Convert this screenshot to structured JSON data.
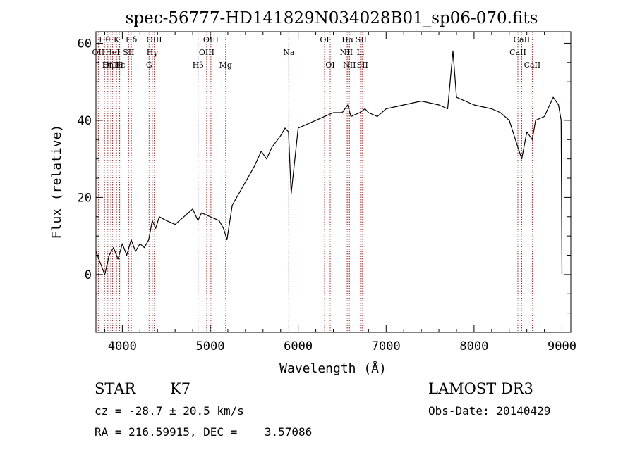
{
  "info": {
    "object_class": "STAR",
    "subclass": "K7",
    "survey": "LAMOST DR3",
    "redshift_line": "cz = -28.7 ± 20.5 km/s",
    "obs_date_line": "Obs-Date: 20140429",
    "coords_line": "RA = 216.59915, DEC =    3.57086"
  },
  "chart_data": {
    "type": "line",
    "title": "spec-56777-HD141829N034028B01_sp06-070.fits",
    "xlabel": "Wavelength (Å)",
    "ylabel": "Flux (relative)",
    "xlim": [
      3700,
      9100
    ],
    "ylim": [
      -15,
      63
    ],
    "x_ticks": [
      4000,
      5000,
      6000,
      7000,
      8000,
      9000
    ],
    "y_ticks": [
      0,
      20,
      40,
      60
    ],
    "grid": false,
    "line_color": "#000000",
    "marker_color": "#b22222",
    "series": [
      {
        "x": [
          3700,
          3750,
          3800,
          3850,
          3900,
          3950,
          4000,
          4050,
          4100,
          4150,
          4200,
          4250,
          4300,
          4340,
          4380,
          4420,
          4500,
          4600,
          4700,
          4800,
          4860,
          4900,
          5000,
          5100,
          5150,
          5190,
          5250,
          5300,
          5400,
          5500,
          5580,
          5640,
          5700,
          5800,
          5850,
          5890,
          5920,
          6000,
          6100,
          6200,
          6300,
          6400,
          6500,
          6563,
          6600,
          6700,
          6760,
          6800,
          6900,
          7000,
          7200,
          7400,
          7600,
          7700,
          7760,
          7800,
          8000,
          8200,
          8300,
          8400,
          8498,
          8542,
          8600,
          8662,
          8700,
          8800,
          8900,
          8960,
          8990,
          9000
        ],
        "y": [
          6,
          3,
          0,
          5,
          7,
          4,
          8,
          5,
          9,
          6,
          8,
          7,
          9,
          14,
          12,
          15,
          14,
          13,
          15,
          17,
          14,
          16,
          15,
          14,
          12,
          9,
          18,
          20,
          24,
          28,
          32,
          30,
          33,
          36,
          38,
          37,
          21,
          38,
          39,
          40,
          41,
          42,
          42,
          44,
          41,
          42,
          43,
          42,
          41,
          43,
          44,
          45,
          44,
          43,
          58,
          46,
          44,
          43,
          42,
          40,
          33,
          30,
          37,
          35,
          40,
          41,
          46,
          44,
          40,
          0
        ]
      }
    ],
    "line_markers": [
      {
        "label": "Hθ",
        "x": 3798,
        "row": 0
      },
      {
        "label": "OII",
        "x": 3727,
        "row": 1
      },
      {
        "label": "OIII",
        "x": 3869,
        "row": 2
      },
      {
        "label": "Hε",
        "x": 3970,
        "row": 2
      },
      {
        "label": "HeI",
        "x": 3889,
        "row": 1
      },
      {
        "label": "K",
        "x": 3934,
        "row": 0
      },
      {
        "label": "SII",
        "x": 4072,
        "row": 1
      },
      {
        "label": "Hη",
        "x": 3835,
        "row": 2
      },
      {
        "label": "H",
        "x": 3968,
        "row": 2
      },
      {
        "label": "Hδ",
        "x": 4102,
        "row": 0
      },
      {
        "label": "OIII",
        "x": 4363,
        "row": 0
      },
      {
        "label": "Hγ",
        "x": 4341,
        "row": 1
      },
      {
        "label": "G",
        "x": 4304,
        "row": 2
      },
      {
        "label": "OIII",
        "x": 5007,
        "row": 0
      },
      {
        "label": "OIII",
        "x": 4959,
        "row": 1
      },
      {
        "label": "Hβ",
        "x": 4861,
        "row": 2
      },
      {
        "label": "Mg",
        "x": 5175,
        "row": 2
      },
      {
        "label": "Na",
        "x": 5893,
        "row": 1
      },
      {
        "label": "OI",
        "x": 6300,
        "row": 0
      },
      {
        "label": "OI",
        "x": 6364,
        "row": 2
      },
      {
        "label": "Hα",
        "x": 6563,
        "row": 0
      },
      {
        "label": "NII",
        "x": 6548,
        "row": 1
      },
      {
        "label": "NII",
        "x": 6583,
        "row": 2
      },
      {
        "label": "SII",
        "x": 6716,
        "row": 0
      },
      {
        "label": "Li",
        "x": 6708,
        "row": 1
      },
      {
        "label": "SII",
        "x": 6731,
        "row": 2
      },
      {
        "label": "CaII",
        "x": 8542,
        "row": 0
      },
      {
        "label": "CaII",
        "x": 8498,
        "row": 1
      },
      {
        "label": "CaII",
        "x": 8662,
        "row": 2
      }
    ]
  }
}
